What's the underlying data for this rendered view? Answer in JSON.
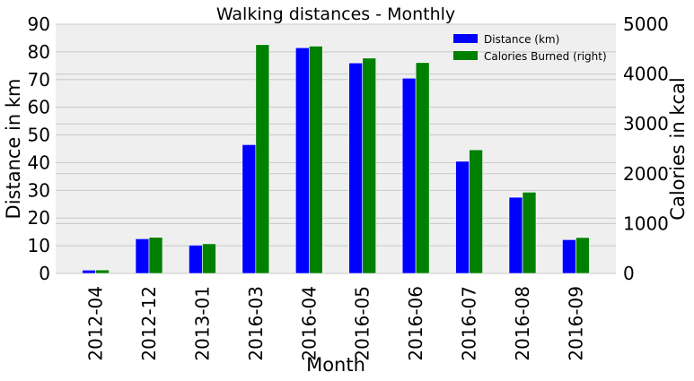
{
  "chart_data": {
    "type": "bar",
    "title": "Walking distances - Monthly",
    "xlabel": "Month",
    "ylabel": "Distance in km",
    "ylabel_right": "Calories in kcal",
    "categories": [
      "2012-04",
      "2012-12",
      "2013-01",
      "2016-03",
      "2016-04",
      "2016-05",
      "2016-06",
      "2016-07",
      "2016-08",
      "2016-09"
    ],
    "series": [
      {
        "name": "Distance (km)",
        "axis": "left",
        "color": "#0000ff",
        "values": [
          1.2,
          12.5,
          10.2,
          46.5,
          81.5,
          76.0,
          70.5,
          40.5,
          27.5,
          12.2
        ]
      },
      {
        "name": "Calories Burned (right)",
        "axis": "right",
        "color": "#008000",
        "values": [
          70,
          725,
          595,
          4590,
          4560,
          4320,
          4230,
          2480,
          1630,
          720
        ]
      }
    ],
    "ylim": [
      0,
      90
    ],
    "ylim_right": [
      0,
      5000
    ],
    "yticks": [
      0,
      10,
      20,
      30,
      40,
      50,
      60,
      70,
      80,
      90
    ],
    "yticks_right": [
      0,
      1000,
      2000,
      3000,
      4000,
      5000
    ],
    "grid": true,
    "legend_position": "top-right",
    "plot_background": "#efefef"
  }
}
